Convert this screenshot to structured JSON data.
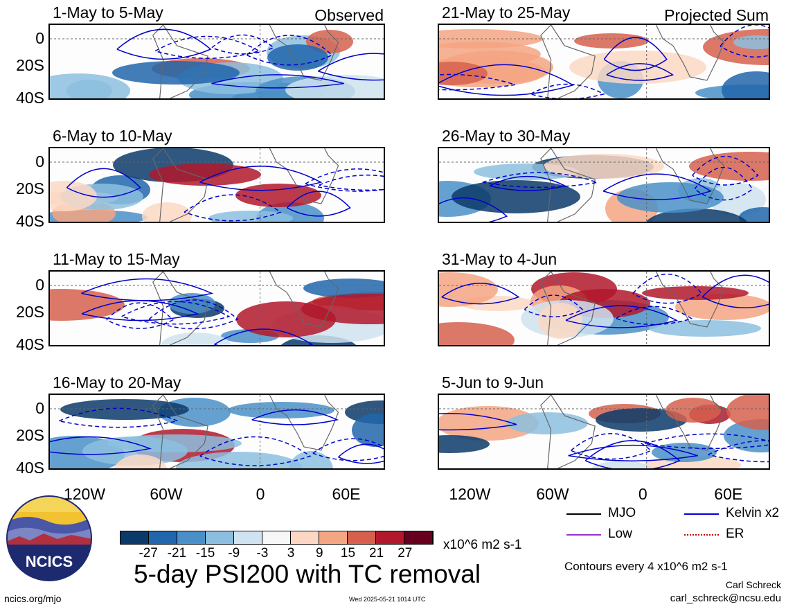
{
  "panels": [
    {
      "id": "p1",
      "title": "1-May to 5-May",
      "tag": "Observed"
    },
    {
      "id": "p2",
      "title": "6-May to 10-May",
      "tag": ""
    },
    {
      "id": "p3",
      "title": "11-May to 15-May",
      "tag": ""
    },
    {
      "id": "p4",
      "title": "16-May to 20-May",
      "tag": ""
    },
    {
      "id": "p5",
      "title": "21-May to 25-May",
      "tag": "Projected Sum"
    },
    {
      "id": "p6",
      "title": "26-May to 30-May",
      "tag": ""
    },
    {
      "id": "p7",
      "title": "31-May to 4-Jun",
      "tag": ""
    },
    {
      "id": "p8",
      "title": "5-Jun to 9-Jun",
      "tag": ""
    }
  ],
  "axes": {
    "y_ticks": [
      "0",
      "20S",
      "40S"
    ],
    "x_ticks": [
      "120W",
      "60W",
      "0",
      "60E"
    ]
  },
  "colorbar": {
    "colors": [
      "#0b3a6a",
      "#2166ac",
      "#4a90c8",
      "#8cbfdf",
      "#cfe3f0",
      "#f7f7f7",
      "#fcd8c4",
      "#f4a582",
      "#d6604d",
      "#b2182b",
      "#67001f"
    ],
    "labels": [
      "-27",
      "-21",
      "-15",
      "-9",
      "-3",
      "3",
      "9",
      "15",
      "21",
      "27"
    ],
    "units": "x10^6 m2 s-1"
  },
  "legend": [
    {
      "label": "MJO",
      "color": "#000000",
      "style": "solid"
    },
    {
      "label": "Kelvin x2",
      "color": "#0000cc",
      "style": "solid"
    },
    {
      "label": "Low",
      "color": "#9933cc",
      "style": "solid"
    },
    {
      "label": "ER",
      "color": "#cc0000",
      "style": "dotted"
    }
  ],
  "title": "5-day PSI200 with TC removal",
  "contour_note": "Contours every 4 x10^6 m2 s-1",
  "author": "Carl Schreck",
  "email": "carl_schreck@ncsu.edu",
  "site": "ncics.org/mjo",
  "timestamp": "Wed 2025-05-21 1014 UTC",
  "logo_text": "NCICS"
}
